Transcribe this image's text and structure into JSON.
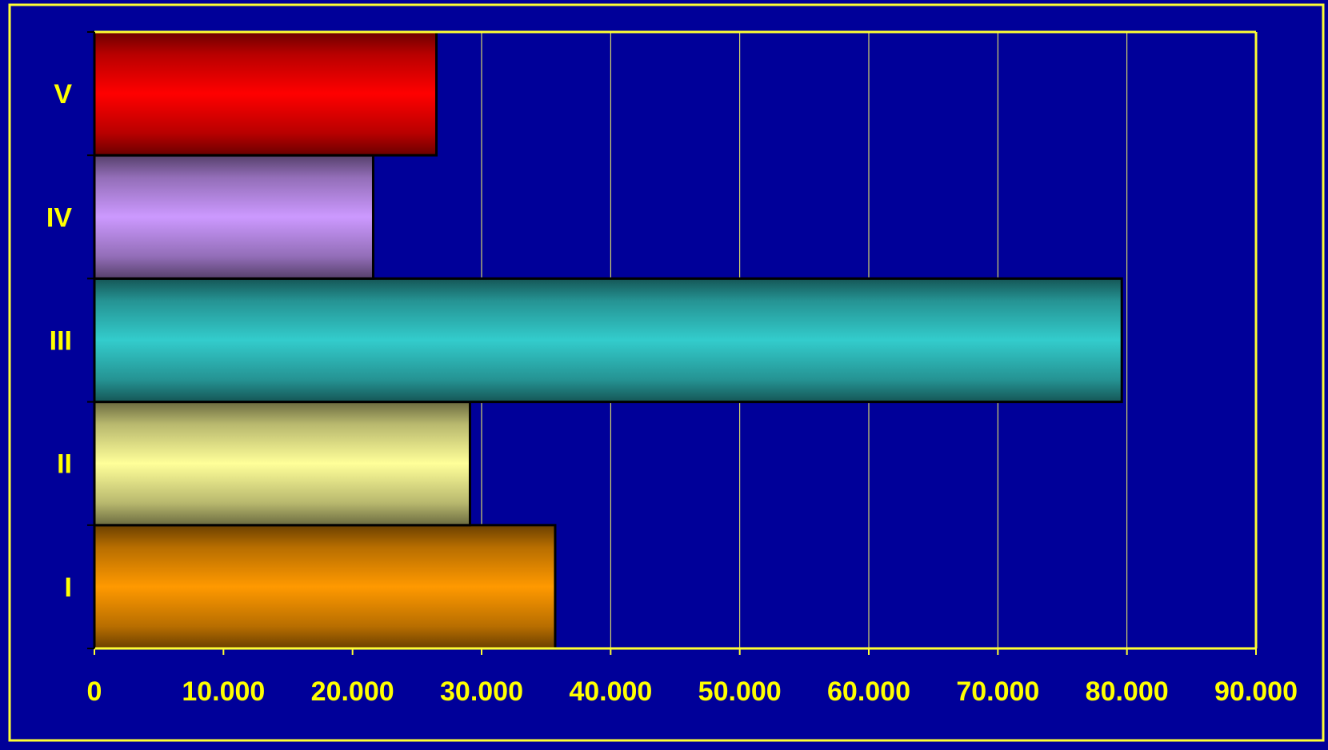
{
  "colors": {
    "background": "#000099",
    "frame": "#FFFF33",
    "gridline": "#FFFF66",
    "tick_label": "#FFFF00",
    "bar_outline": "#000000"
  },
  "chart_data": {
    "type": "bar",
    "orientation": "horizontal",
    "title": "",
    "xlabel": "",
    "ylabel": "",
    "categories": [
      "I",
      "II",
      "III",
      "IV",
      "V"
    ],
    "values": [
      35700,
      29100,
      79600,
      21600,
      26500
    ],
    "bar_colors": [
      "#FF9900",
      "#FFFF99",
      "#33CCCC",
      "#CC99FF",
      "#FF0000"
    ],
    "xlim": [
      0,
      90000
    ],
    "xticks": [
      0,
      10000,
      20000,
      30000,
      40000,
      50000,
      60000,
      70000,
      80000,
      90000
    ],
    "xtick_labels": [
      "0",
      "10.000",
      "20.000",
      "30.000",
      "40.000",
      "50.000",
      "60.000",
      "70.000",
      "80.000",
      "90.000"
    ],
    "grid": "vertical",
    "legend": "none"
  }
}
